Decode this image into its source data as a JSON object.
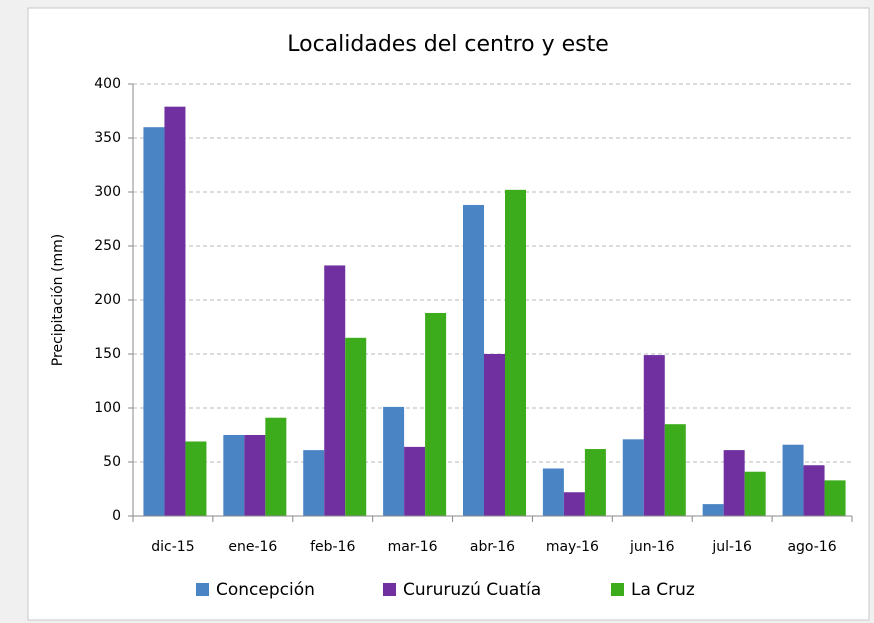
{
  "chart_data": {
    "type": "bar",
    "title": "Localidades del centro y este",
    "y_label": "Precipitación (mm)",
    "categories": [
      "dic-15",
      "ene-16",
      "feb-16",
      "mar-16",
      "abr-16",
      "may-16",
      "jun-16",
      "jul-16",
      "ago-16"
    ],
    "series": [
      {
        "name": "Concepción",
        "color": "#4a84c4",
        "values": [
          360,
          75,
          61,
          101,
          288,
          44,
          71,
          11,
          66
        ]
      },
      {
        "name": "Cururuzú Cuatía",
        "color": "#7030a0",
        "values": [
          379,
          75,
          232,
          64,
          150,
          22,
          149,
          61,
          47
        ]
      },
      {
        "name": "La Cruz",
        "color": "#3cab1c",
        "values": [
          69,
          91,
          165,
          188,
          302,
          62,
          85,
          41,
          33
        ]
      }
    ],
    "ylim": [
      0,
      400
    ],
    "yticks": [
      0,
      50,
      100,
      150,
      200,
      250,
      300,
      350,
      400
    ],
    "grid": true
  }
}
